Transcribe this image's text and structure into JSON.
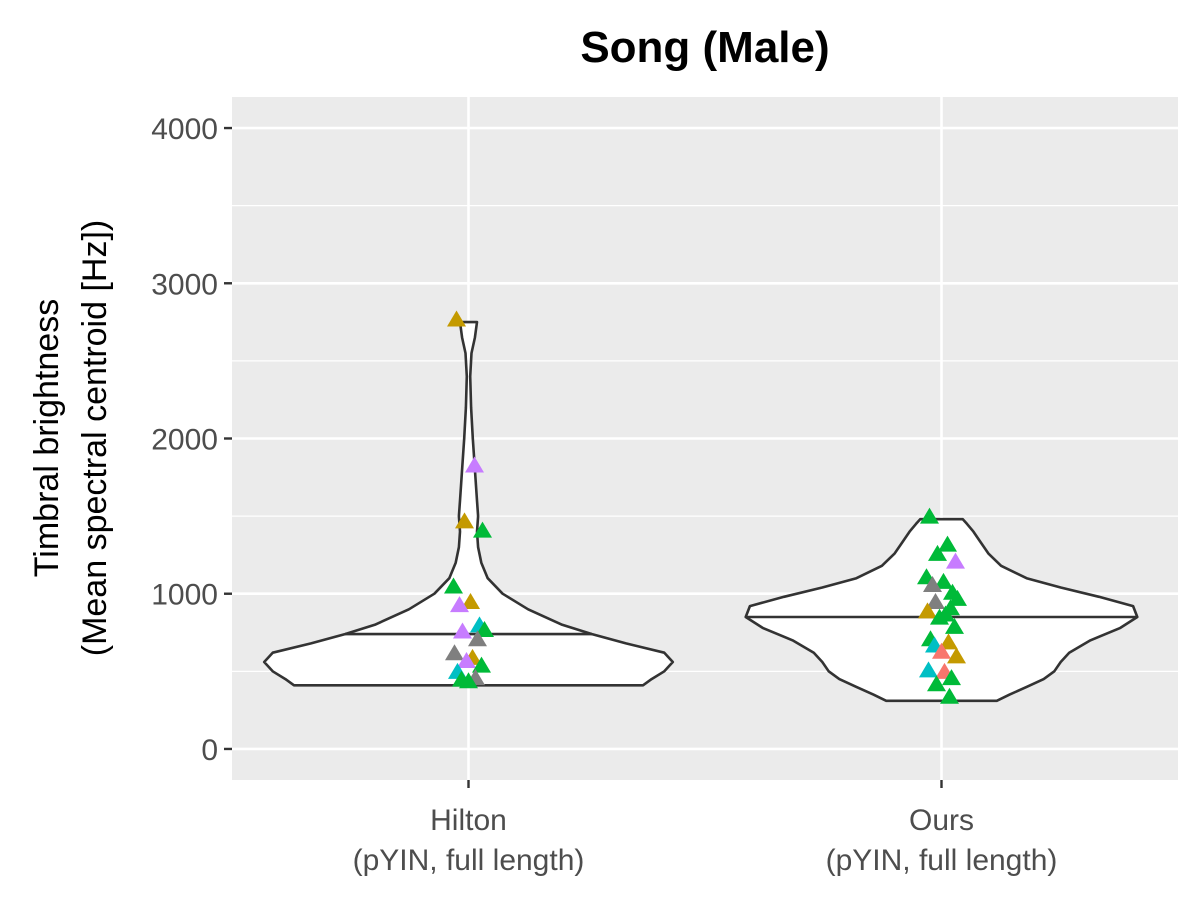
{
  "chart_data": {
    "type": "violin",
    "title": "Song (Male)",
    "xlabel": "",
    "ylabel_lines": [
      "Timbral brightness",
      "(Mean spectral centroid [Hz])"
    ],
    "ylim": [
      -200,
      4200
    ],
    "yticks": [
      0,
      1000,
      2000,
      3000,
      4000
    ],
    "grid": true,
    "legend": "none",
    "categories": [
      {
        "line1": "Hilton",
        "line2": "(pYIN, full length)"
      },
      {
        "line1": "Ours",
        "line2": "(pYIN, full length)"
      }
    ],
    "violins": [
      {
        "median": 740,
        "min": 410,
        "max": 2750,
        "density_profile": [
          [
            410,
            0.82
          ],
          [
            450,
            0.86
          ],
          [
            500,
            0.92
          ],
          [
            560,
            0.96
          ],
          [
            620,
            0.92
          ],
          [
            680,
            0.74
          ],
          [
            740,
            0.58
          ],
          [
            800,
            0.44
          ],
          [
            900,
            0.28
          ],
          [
            1000,
            0.16
          ],
          [
            1100,
            0.09
          ],
          [
            1200,
            0.06
          ],
          [
            1300,
            0.045
          ],
          [
            1400,
            0.04
          ],
          [
            1500,
            0.045
          ],
          [
            1600,
            0.04
          ],
          [
            1800,
            0.03
          ],
          [
            2000,
            0.02
          ],
          [
            2200,
            0.012
          ],
          [
            2400,
            0.008
          ],
          [
            2550,
            0.014
          ],
          [
            2650,
            0.03
          ],
          [
            2750,
            0.04
          ]
        ],
        "points": [
          {
            "y": 2760,
            "color": "#C49A00"
          },
          {
            "y": 1820,
            "color": "#C77CFF"
          },
          {
            "y": 1460,
            "color": "#C49A00"
          },
          {
            "y": 1400,
            "color": "#00BA38"
          },
          {
            "y": 1040,
            "color": "#00BA38"
          },
          {
            "y": 940,
            "color": "#C49A00"
          },
          {
            "y": 920,
            "color": "#C77CFF"
          },
          {
            "y": 790,
            "color": "#00BFC4"
          },
          {
            "y": 760,
            "color": "#00BA38"
          },
          {
            "y": 750,
            "color": "#C77CFF"
          },
          {
            "y": 700,
            "color": "#7F7F7F"
          },
          {
            "y": 610,
            "color": "#7F7F7F"
          },
          {
            "y": 580,
            "color": "#C49A00"
          },
          {
            "y": 560,
            "color": "#C77CFF"
          },
          {
            "y": 530,
            "color": "#00BA38"
          },
          {
            "y": 490,
            "color": "#00BFC4"
          },
          {
            "y": 450,
            "color": "#7F7F7F"
          },
          {
            "y": 440,
            "color": "#00BA38"
          },
          {
            "y": 430,
            "color": "#00BA38"
          }
        ]
      },
      {
        "median": 850,
        "min": 310,
        "max": 1480,
        "density_profile": [
          [
            310,
            0.26
          ],
          [
            350,
            0.32
          ],
          [
            400,
            0.4
          ],
          [
            450,
            0.48
          ],
          [
            500,
            0.53
          ],
          [
            560,
            0.56
          ],
          [
            620,
            0.6
          ],
          [
            700,
            0.7
          ],
          [
            780,
            0.84
          ],
          [
            850,
            0.92
          ],
          [
            920,
            0.9
          ],
          [
            980,
            0.74
          ],
          [
            1040,
            0.56
          ],
          [
            1100,
            0.4
          ],
          [
            1180,
            0.28
          ],
          [
            1260,
            0.22
          ],
          [
            1340,
            0.18
          ],
          [
            1400,
            0.15
          ],
          [
            1450,
            0.12
          ],
          [
            1480,
            0.1
          ]
        ],
        "points": [
          {
            "y": 1490,
            "color": "#00BA38"
          },
          {
            "y": 1310,
            "color": "#00BA38"
          },
          {
            "y": 1250,
            "color": "#00BA38"
          },
          {
            "y": 1200,
            "color": "#C77CFF"
          },
          {
            "y": 1100,
            "color": "#00BA38"
          },
          {
            "y": 1070,
            "color": "#00BA38"
          },
          {
            "y": 1050,
            "color": "#7F7F7F"
          },
          {
            "y": 1000,
            "color": "#00BA38"
          },
          {
            "y": 960,
            "color": "#00BA38"
          },
          {
            "y": 940,
            "color": "#7F7F7F"
          },
          {
            "y": 900,
            "color": "#00BA38"
          },
          {
            "y": 880,
            "color": "#C49A00"
          },
          {
            "y": 860,
            "color": "#00BA38"
          },
          {
            "y": 840,
            "color": "#00BA38"
          },
          {
            "y": 780,
            "color": "#00BA38"
          },
          {
            "y": 700,
            "color": "#00BA38"
          },
          {
            "y": 680,
            "color": "#C49A00"
          },
          {
            "y": 660,
            "color": "#00BFC4"
          },
          {
            "y": 620,
            "color": "#F8766D"
          },
          {
            "y": 590,
            "color": "#C49A00"
          },
          {
            "y": 500,
            "color": "#00BFC4"
          },
          {
            "y": 490,
            "color": "#F8766D"
          },
          {
            "y": 450,
            "color": "#00BA38"
          },
          {
            "y": 410,
            "color": "#00BA38"
          },
          {
            "y": 330,
            "color": "#00BA38"
          }
        ]
      }
    ]
  }
}
